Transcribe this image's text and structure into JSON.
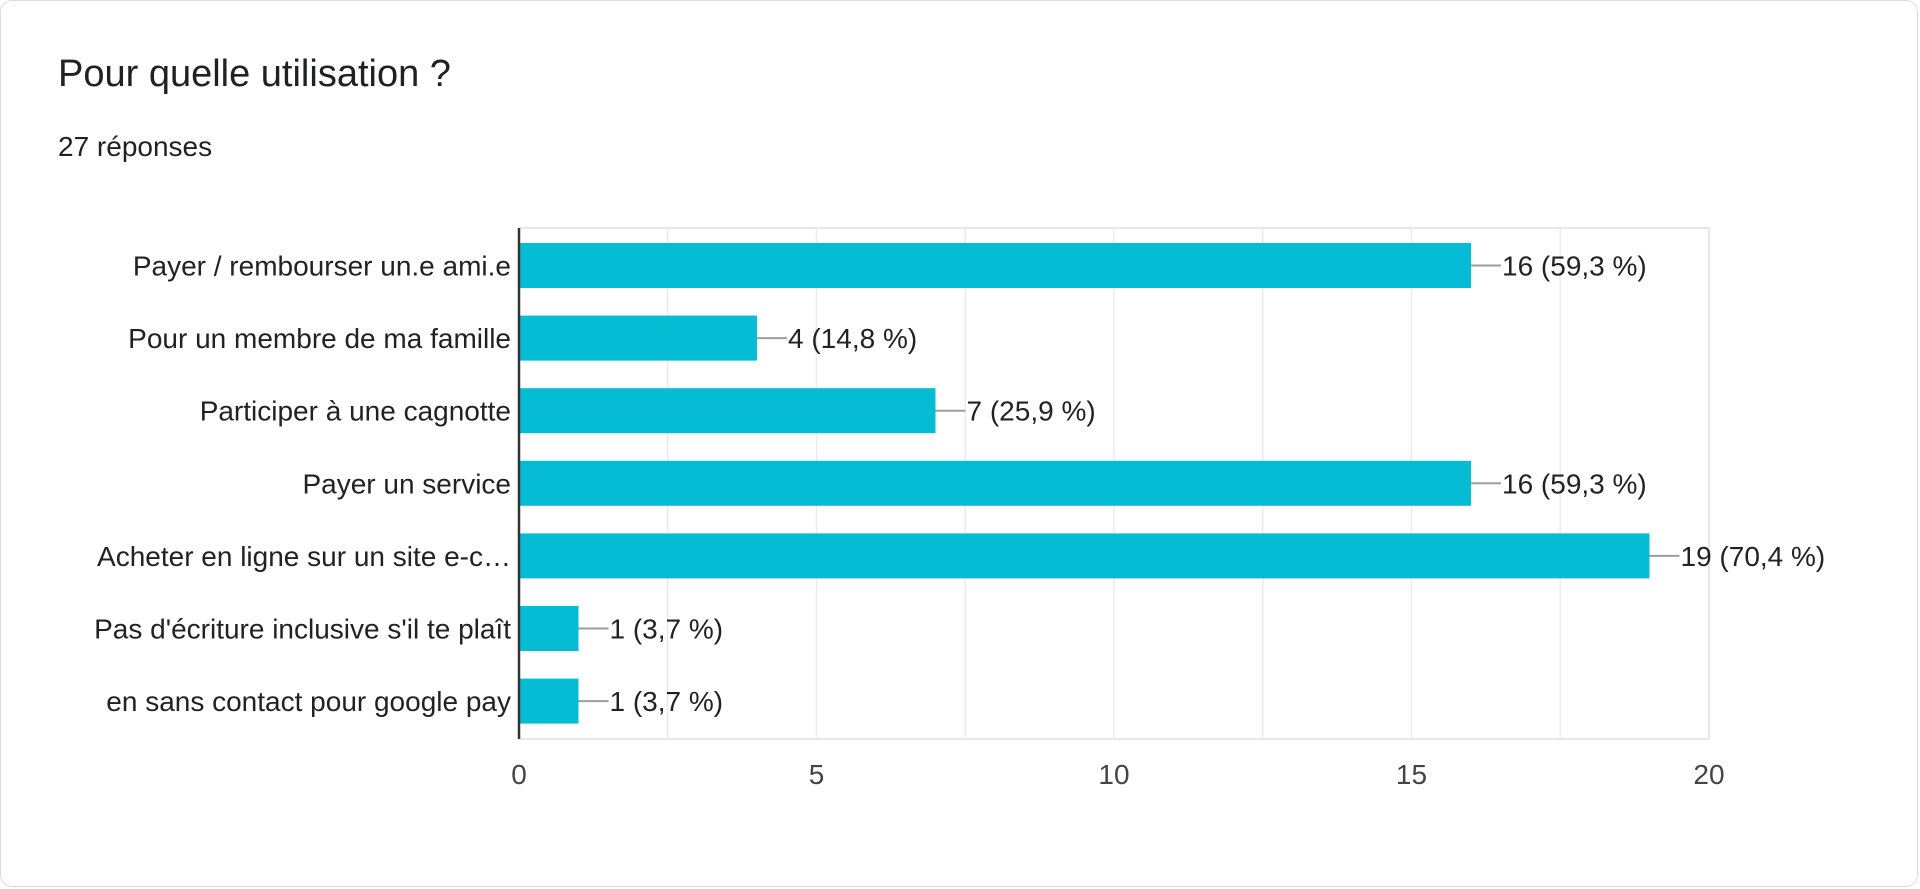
{
  "header": {
    "title": "Pour quelle utilisation ?",
    "responses": "27 réponses"
  },
  "chart_data": {
    "type": "bar",
    "orientation": "horizontal",
    "categories": [
      "Payer / rembourser un.e ami.e",
      "Pour un membre de ma famille",
      "Participer à une cagnotte",
      "Payer un service",
      "Acheter en ligne sur un site e-c…",
      "Pas d'écriture inclusive s'il te plaît",
      "en sans contact pour google pay"
    ],
    "values": [
      16,
      4,
      7,
      16,
      19,
      1,
      1
    ],
    "value_labels": [
      "16 (59,3 %)",
      "4 (14,8 %)",
      "7 (25,9 %)",
      "16 (59,3 %)",
      "19 (70,4 %)",
      "1 (3,7 %)",
      "1 (3,7 %)"
    ],
    "xlim": [
      0,
      20
    ],
    "xticks": [
      0,
      5,
      10,
      15,
      20
    ],
    "bar_color": "#06bcd4",
    "grid": true,
    "title": "",
    "xlabel": "",
    "ylabel": ""
  }
}
